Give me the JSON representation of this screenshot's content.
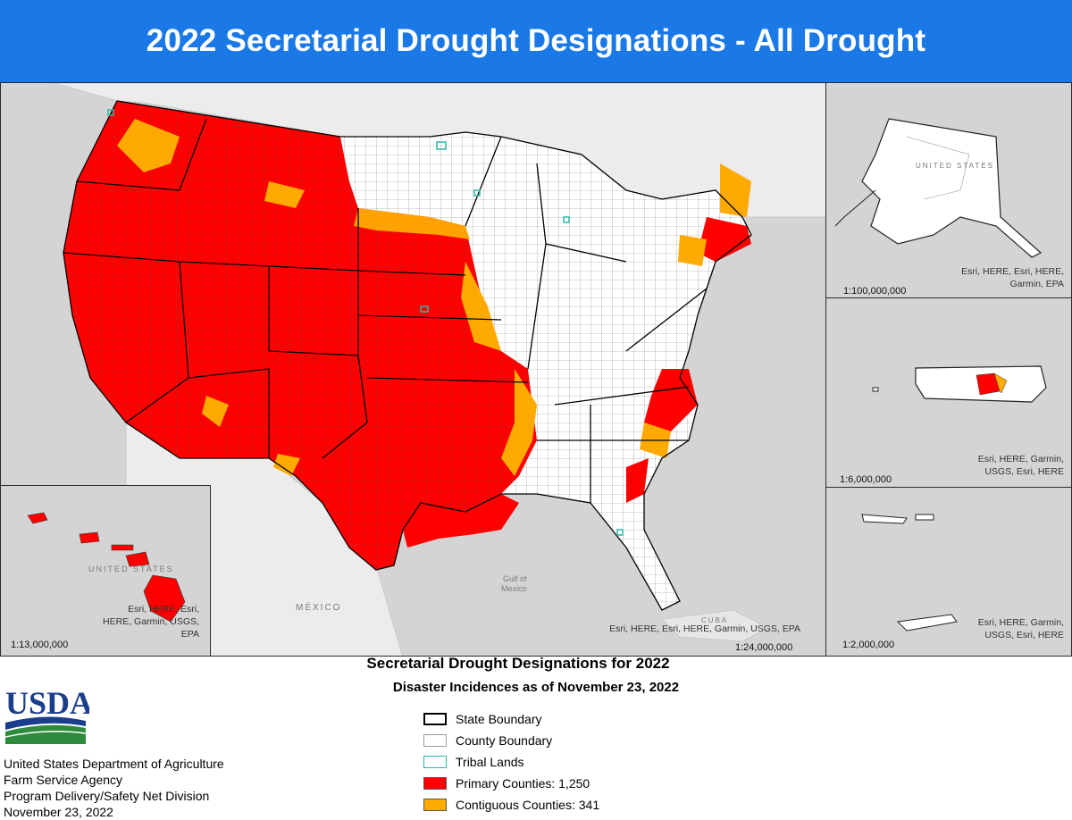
{
  "title": "2022 Secretarial Drought Designations - All Drought",
  "main_map": {
    "scale": "1:24,000,000",
    "credit": "Esri, HERE, Esri, HERE, Garmin, USGS, EPA",
    "labels": {
      "mexico": "MÉXICO",
      "gulf_line1": "Gulf of",
      "gulf_line2": "Mexico",
      "cuba": "CUBA"
    }
  },
  "hawaii_inset": {
    "scale": "1:13,000,000",
    "credit_lines": [
      "Esri, HERE, Esri,",
      "HERE, Garmin, USGS,",
      "EPA"
    ],
    "label": "UNITED STATES"
  },
  "alaska_inset": {
    "scale": "1:100,000,000",
    "credit_lines": [
      "Esri, HERE, Esri, HERE,",
      "Garmin, EPA"
    ],
    "label": "UNITED STATES"
  },
  "puerto_rico_inset": {
    "scale": "1:6,000,000",
    "credit_lines": [
      "Esri, HERE, Garmin,",
      "USGS, Esri, HERE"
    ]
  },
  "virgin_islands_inset": {
    "scale": "1:2,000,000",
    "credit_lines": [
      "Esri, HERE, Garmin,",
      "USGS, Esri, HERE"
    ]
  },
  "legend": {
    "title": "Secretarial Drought Designations for 2022",
    "subtitle": "Disaster Incidences as of November 23, 2022",
    "items": [
      {
        "label": "State Boundary",
        "fill": "#ffffff",
        "stroke": "#000000"
      },
      {
        "label": "County Boundary",
        "fill": "#ffffff",
        "stroke": "#9a9a9a"
      },
      {
        "label": "Tribal Lands",
        "fill": "#ffffff",
        "stroke": "#2bb8a6"
      },
      {
        "label": "Primary Counties: 1,250",
        "fill": "#ff0000",
        "stroke": "#555555"
      },
      {
        "label": "Contiguous Counties: 341",
        "fill": "#ffaa00",
        "stroke": "#555555"
      }
    ]
  },
  "agency": {
    "logo_text": "USDA",
    "lines": [
      "United States Department of Agriculture",
      "Farm Service Agency",
      "Program Delivery/Safety Net Division",
      "November 23, 2022"
    ]
  },
  "colors": {
    "banner": "#1a79e6",
    "primary": "#ff0000",
    "contiguous": "#ffaa00",
    "water": "#d4d4d4",
    "land": "#f2f2f2",
    "tribal": "#2bb8a6"
  }
}
